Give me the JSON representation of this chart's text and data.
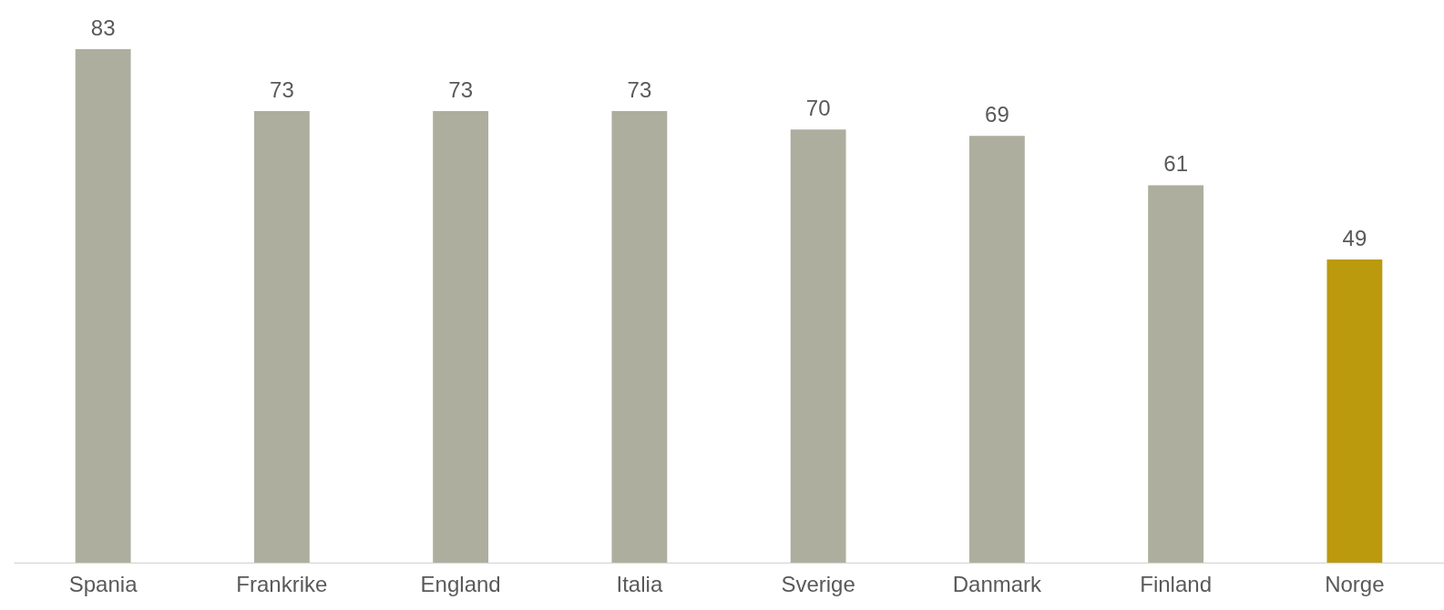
{
  "chart_data": {
    "type": "bar",
    "categories": [
      "Spania",
      "Frankrike",
      "England",
      "Italia",
      "Sverige",
      "Danmark",
      "Finland",
      "Norge"
    ],
    "values": [
      83,
      73,
      73,
      73,
      70,
      69,
      61,
      49
    ],
    "colors": [
      "#adae9e",
      "#adae9e",
      "#adae9e",
      "#adae9e",
      "#adae9e",
      "#adae9e",
      "#adae9e",
      "#bb9a0e"
    ],
    "data_labels": true,
    "grid": false,
    "tick_labels": "x"
  }
}
